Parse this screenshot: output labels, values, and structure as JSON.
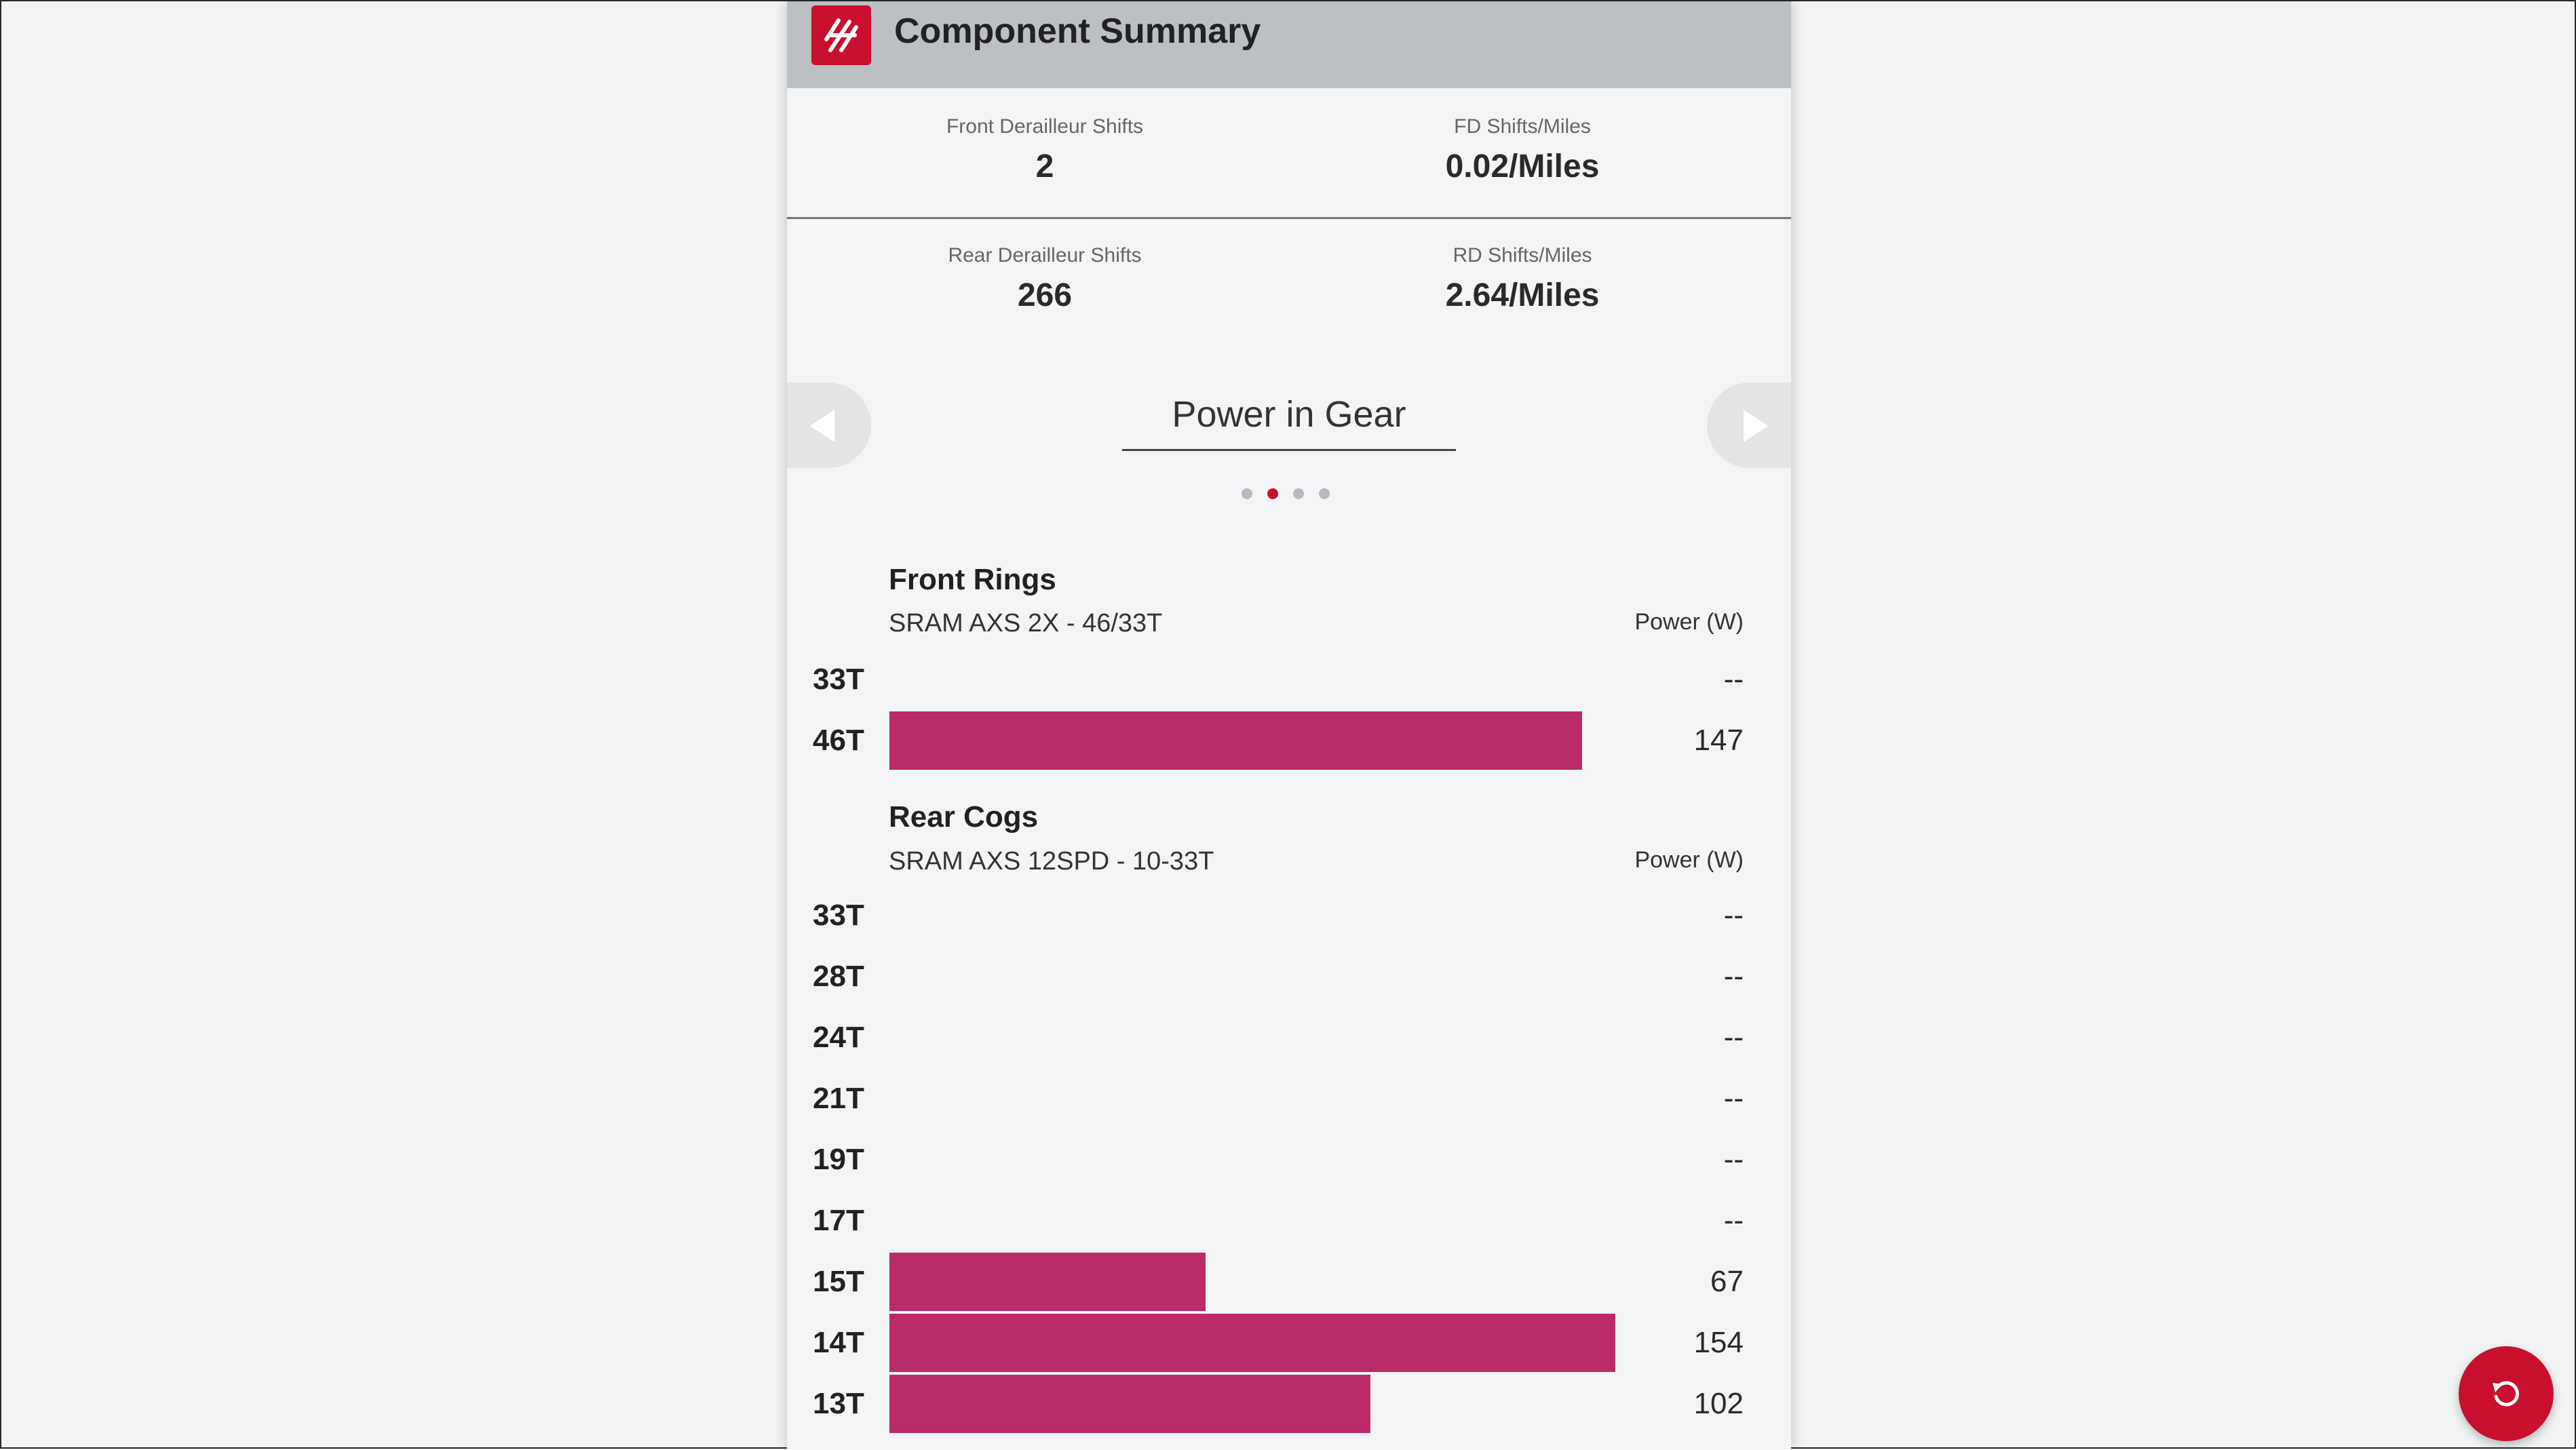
{
  "header": {
    "title": "Component Summary",
    "logo_icon": "brand-logo-icon"
  },
  "stats": {
    "row1": [
      {
        "label": "Front Derailleur Shifts",
        "value": "2"
      },
      {
        "label": "FD Shifts/Miles",
        "value": "0.02/Miles"
      }
    ],
    "row2": [
      {
        "label": "Rear Derailleur Shifts",
        "value": "266"
      },
      {
        "label": "RD Shifts/Miles",
        "value": "2.64/Miles"
      }
    ]
  },
  "carousel": {
    "title": "Power in Gear",
    "page_count": 4,
    "active_page": 2
  },
  "front_rings": {
    "title": "Front Rings",
    "subtitle": "SRAM AXS 2X - 46/33T",
    "unit_label": "Power (W)",
    "rows": [
      {
        "gear": "33T",
        "display": "--",
        "power": 0
      },
      {
        "gear": "46T",
        "display": "147",
        "power": 147
      }
    ]
  },
  "rear_cogs": {
    "title": "Rear Cogs",
    "subtitle": "SRAM AXS 12SPD - 10-33T",
    "unit_label": "Power (W)",
    "rows": [
      {
        "gear": "33T",
        "display": "--",
        "power": 0
      },
      {
        "gear": "28T",
        "display": "--",
        "power": 0
      },
      {
        "gear": "24T",
        "display": "--",
        "power": 0
      },
      {
        "gear": "21T",
        "display": "--",
        "power": 0
      },
      {
        "gear": "19T",
        "display": "--",
        "power": 0
      },
      {
        "gear": "17T",
        "display": "--",
        "power": 0
      },
      {
        "gear": "15T",
        "display": "67",
        "power": 67
      },
      {
        "gear": "14T",
        "display": "154",
        "power": 154
      },
      {
        "gear": "13T",
        "display": "102",
        "power": 102
      }
    ]
  },
  "colors": {
    "accent": "#c8102e",
    "bar": "#b92b69",
    "header_bg": "#bcbfc4"
  },
  "icons": {
    "prev": "chevron-left-icon",
    "next": "chevron-right-icon",
    "refresh": "refresh-icon"
  }
}
